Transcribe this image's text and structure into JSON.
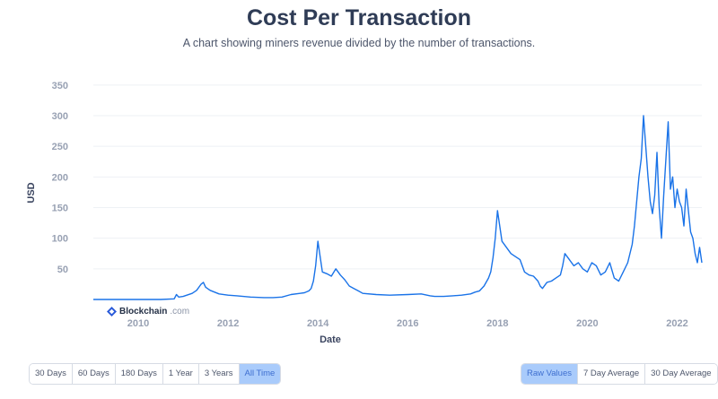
{
  "header": {
    "title": "Cost Per Transaction",
    "subtitle": "A chart showing miners revenue divided by the number of transactions."
  },
  "brand": {
    "name": "Blockchain",
    "domain": ".com"
  },
  "range_buttons": [
    {
      "label": "30 Days",
      "active": false
    },
    {
      "label": "60 Days",
      "active": false
    },
    {
      "label": "180 Days",
      "active": false
    },
    {
      "label": "1 Year",
      "active": false
    },
    {
      "label": "3 Years",
      "active": false
    },
    {
      "label": "All Time",
      "active": true
    }
  ],
  "smoothing_buttons": [
    {
      "label": "Raw Values",
      "active": true
    },
    {
      "label": "7 Day Average",
      "active": false
    },
    {
      "label": "30 Day Average",
      "active": false
    }
  ],
  "colors": {
    "line": "#1a73e8",
    "gridline": "#eef1f5",
    "active_button": "#a9cbfb"
  },
  "chart_data": {
    "type": "line",
    "xlabel": "Date",
    "ylabel": "USD",
    "x_ticks": [
      "2010",
      "2012",
      "2014",
      "2016",
      "2018",
      "2020",
      "2022"
    ],
    "y_ticks": [
      50,
      100,
      150,
      200,
      250,
      300,
      350
    ],
    "xlim": [
      2009.0,
      2022.55
    ],
    "ylim": [
      0,
      360
    ],
    "grid": true,
    "series": [
      {
        "values_x": [
          2009.0,
          2009.5,
          2010.0,
          2010.5,
          2010.8,
          2010.85,
          2010.9,
          2011.0,
          2011.2,
          2011.3,
          2011.4,
          2011.45,
          2011.5,
          2011.6,
          2011.7,
          2011.8,
          2012.0,
          2012.2,
          2012.5,
          2012.8,
          2013.0,
          2013.2,
          2013.4,
          2013.6,
          2013.7,
          2013.8,
          2013.85,
          2013.9,
          2013.95,
          2014.0,
          2014.05,
          2014.1,
          2014.2,
          2014.3,
          2014.4,
          2014.5,
          2014.6,
          2014.7,
          2014.8,
          2014.9,
          2015.0,
          2015.3,
          2015.6,
          2016.0,
          2016.3,
          2016.5,
          2016.6,
          2016.8,
          2017.0,
          2017.2,
          2017.4,
          2017.5,
          2017.6,
          2017.7,
          2017.8,
          2017.85,
          2017.9,
          2017.95,
          2018.0,
          2018.05,
          2018.1,
          2018.2,
          2018.3,
          2018.4,
          2018.5,
          2018.6,
          2018.7,
          2018.8,
          2018.9,
          2018.95,
          2019.0,
          2019.1,
          2019.2,
          2019.3,
          2019.4,
          2019.45,
          2019.5,
          2019.6,
          2019.7,
          2019.8,
          2019.9,
          2020.0,
          2020.1,
          2020.2,
          2020.3,
          2020.4,
          2020.5,
          2020.6,
          2020.7,
          2020.8,
          2020.9,
          2021.0,
          2021.05,
          2021.1,
          2021.15,
          2021.2,
          2021.25,
          2021.3,
          2021.35,
          2021.4,
          2021.45,
          2021.5,
          2021.55,
          2021.6,
          2021.65,
          2021.7,
          2021.75,
          2021.8,
          2021.85,
          2021.9,
          2021.95,
          2022.0,
          2022.05,
          2022.1,
          2022.15,
          2022.2,
          2022.25,
          2022.3,
          2022.35,
          2022.4,
          2022.45,
          2022.5,
          2022.55
        ],
        "values_y": [
          0,
          0,
          0,
          0,
          1,
          8,
          4,
          5,
          10,
          15,
          25,
          28,
          20,
          15,
          12,
          9,
          7,
          6,
          4,
          3,
          3,
          4,
          8,
          10,
          11,
          14,
          18,
          30,
          55,
          95,
          70,
          45,
          42,
          38,
          50,
          40,
          32,
          22,
          18,
          14,
          10,
          8,
          7,
          8,
          9,
          6,
          5,
          5,
          6,
          7,
          9,
          12,
          14,
          22,
          35,
          45,
          68,
          100,
          145,
          120,
          95,
          85,
          75,
          70,
          65,
          45,
          40,
          38,
          30,
          22,
          18,
          28,
          30,
          35,
          40,
          55,
          75,
          65,
          55,
          60,
          50,
          45,
          60,
          55,
          40,
          45,
          60,
          35,
          30,
          45,
          60,
          90,
          120,
          160,
          200,
          230,
          300,
          250,
          200,
          160,
          140,
          170,
          240,
          150,
          100,
          170,
          230,
          290,
          180,
          200,
          150,
          180,
          160,
          150,
          120,
          180,
          145,
          110,
          100,
          75,
          60,
          85,
          60
        ]
      }
    ]
  }
}
